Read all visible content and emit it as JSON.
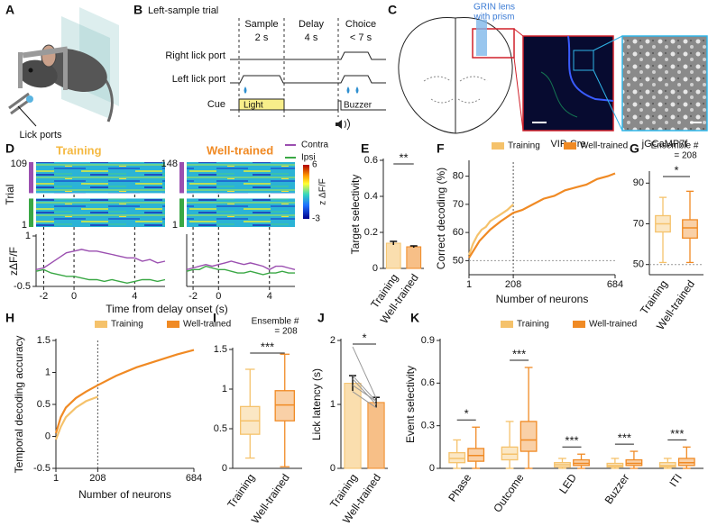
{
  "figure": {
    "panel_labels": [
      "A",
      "B",
      "C",
      "D",
      "E",
      "F",
      "G",
      "H",
      "I",
      "J",
      "K"
    ]
  },
  "diagram_a": {
    "label": "Lick ports"
  },
  "diagram_b": {
    "title": "Left-sample trial",
    "epochs": [
      {
        "name": "Sample",
        "duration": "2 s"
      },
      {
        "name": "Delay",
        "duration": "4 s"
      },
      {
        "name": "Choice",
        "duration": "< 7 s"
      }
    ],
    "rows": [
      "Right lick port",
      "Left lick port",
      "Cue"
    ],
    "cues": [
      "Light",
      "Buzzer"
    ]
  },
  "diagram_c": {
    "lens": [
      "GRIN lens",
      "with prism"
    ],
    "captions": [
      "VIP-Cre",
      "jGCaMP7f"
    ]
  },
  "chart_data": [
    {
      "type": "line",
      "title": "Training",
      "title_color": "#f5b942",
      "xlabel": "Time from delay onset (s)",
      "ylabel": "zΔF/F",
      "heatmap": {
        "ylabel": "Trial",
        "yticks": [
          1,
          109
        ]
      },
      "x": [
        -2.5,
        -2,
        -1.5,
        -1,
        -0.5,
        0,
        0.5,
        1,
        1.5,
        2,
        2.5,
        3,
        3.5,
        4,
        4.5,
        5,
        5.5,
        6
      ],
      "series": [
        {
          "name": "Contra",
          "color": "#9b4fb0",
          "values": [
            0.0,
            0.05,
            0.2,
            0.35,
            0.5,
            0.55,
            0.6,
            0.55,
            0.55,
            0.5,
            0.45,
            0.4,
            0.35,
            0.35,
            0.25,
            0.3,
            0.2,
            0.25
          ]
        },
        {
          "name": "Ipsi",
          "color": "#3aa845",
          "values": [
            -0.05,
            0.0,
            -0.1,
            -0.15,
            -0.2,
            -0.2,
            -0.25,
            -0.3,
            -0.3,
            -0.35,
            -0.3,
            -0.35,
            -0.4,
            -0.35,
            -0.3,
            -0.3,
            -0.35,
            -0.3
          ]
        }
      ],
      "xlim": [
        -2.5,
        6
      ],
      "xticks": [
        -2,
        0,
        4
      ],
      "ylim": [
        -0.5,
        1
      ],
      "yticks": [
        -0.5,
        1
      ],
      "legend": "top-right"
    },
    {
      "type": "line",
      "title": "Well-trained",
      "title_color": "#f08a24",
      "heatmap": {
        "yticks": [
          1,
          148
        ]
      },
      "colorbar": {
        "label": "z ΔF/F",
        "lim": [
          -3,
          6
        ],
        "ticks": [
          6,
          -3
        ]
      },
      "x": [
        -2.5,
        -2,
        -1.5,
        -1,
        -0.5,
        0,
        0.5,
        1,
        1.5,
        2,
        2.5,
        3,
        3.5,
        4,
        4.5,
        5,
        5.5,
        6
      ],
      "series": [
        {
          "color": "#9b4fb0",
          "values": [
            0.0,
            0.05,
            0.1,
            0.15,
            0.1,
            0.15,
            0.2,
            0.25,
            0.2,
            0.15,
            0.2,
            0.15,
            0.1,
            0.0,
            0.1,
            0.1,
            0.05,
            0.0
          ]
        },
        {
          "color": "#3aa845",
          "values": [
            -0.05,
            0.0,
            0.0,
            0.1,
            0.05,
            0.0,
            0.0,
            -0.05,
            -0.1,
            -0.1,
            -0.05,
            -0.1,
            -0.15,
            -0.1,
            -0.1,
            -0.05,
            -0.1,
            -0.1
          ]
        }
      ],
      "xlim": [
        -2.5,
        6
      ],
      "xticks": [
        -2,
        0,
        4
      ],
      "ylim": [
        -0.5,
        1
      ]
    },
    {
      "type": "bar",
      "ylabel": "Target selectivity",
      "categories": [
        "Training",
        "Well-trained"
      ],
      "values": [
        0.14,
        0.12
      ],
      "errors": [
        0.01,
        0.005
      ],
      "colors": [
        "#f5c26b",
        "#f08a24"
      ],
      "ylim": [
        0,
        0.6
      ],
      "yticks": [
        0,
        0.2,
        0.4,
        0.6
      ],
      "significance": "**"
    },
    {
      "type": "line",
      "xlabel": "Number of neurons",
      "ylabel": "Correct decoding (%)",
      "series": [
        {
          "name": "Training",
          "color": "#f5c26b",
          "x": [
            1,
            20,
            40,
            60,
            80,
            100,
            120,
            140,
            160,
            180,
            208
          ],
          "values": [
            52,
            56,
            59,
            61,
            62,
            64,
            65,
            66,
            67,
            68,
            70
          ]
        },
        {
          "name": "Well-trained",
          "color": "#f08a24",
          "x": [
            1,
            50,
            100,
            150,
            208,
            250,
            300,
            350,
            400,
            450,
            500,
            550,
            600,
            650,
            684
          ],
          "values": [
            51,
            57,
            61,
            64,
            67,
            68,
            70,
            72,
            73,
            75,
            76,
            77,
            79,
            80,
            81
          ]
        }
      ],
      "xlim": [
        1,
        684
      ],
      "xticks": [
        1,
        208,
        684
      ],
      "ylim": [
        45,
        85
      ],
      "yticks": [
        50,
        60,
        70,
        80
      ],
      "reference_y": 50,
      "reference_x": 208,
      "legend": "top"
    },
    {
      "type": "box",
      "annotation": [
        "Ensemble #",
        "= 208"
      ],
      "categories": [
        "Training",
        "Well-trained"
      ],
      "values": [
        [
          51,
          66,
          70,
          74,
          83
        ],
        [
          51,
          63,
          68,
          72,
          86
        ]
      ],
      "colors": [
        "#f5c26b",
        "#f08a24"
      ],
      "ylim": [
        45,
        95
      ],
      "yticks": [
        50,
        70,
        90
      ],
      "reference_y": 50,
      "significance": "*"
    },
    {
      "type": "line",
      "xlabel": "Number of neurons",
      "ylabel": "Temporal decoding accuracy",
      "series": [
        {
          "name": "Training",
          "color": "#f5c26b",
          "x": [
            1,
            25,
            50,
            100,
            150,
            208
          ],
          "values": [
            -0.05,
            0.15,
            0.3,
            0.45,
            0.55,
            0.62
          ]
        },
        {
          "name": "Well-trained",
          "color": "#f08a24",
          "x": [
            1,
            25,
            50,
            100,
            150,
            208,
            300,
            400,
            500,
            600,
            684
          ],
          "values": [
            0.05,
            0.3,
            0.45,
            0.6,
            0.7,
            0.8,
            0.95,
            1.08,
            1.18,
            1.28,
            1.35
          ]
        }
      ],
      "xlim": [
        1,
        684
      ],
      "xticks": [
        1,
        208,
        684
      ],
      "ylim": [
        -0.5,
        1.5
      ],
      "yticks": [
        -0.5,
        0,
        0.5,
        1,
        1.5
      ],
      "reference_x": 208,
      "legend": "top"
    },
    {
      "type": "box",
      "annotation": [
        "Ensemble #",
        "= 208"
      ],
      "categories": [
        "Training",
        "Well-trained"
      ],
      "values": [
        [
          0.13,
          0.43,
          0.6,
          0.78,
          1.25
        ],
        [
          0.02,
          0.6,
          0.8,
          0.98,
          1.44
        ]
      ],
      "colors": [
        "#f5c26b",
        "#f08a24"
      ],
      "ylim": [
        0,
        1.5
      ],
      "yticks": [
        0,
        0.5,
        1,
        1.5
      ],
      "significance": "***"
    },
    {
      "type": "bar",
      "ylabel": "Lick latency (s)",
      "categories": [
        "Training",
        "Well-trained"
      ],
      "values": [
        1.33,
        1.03
      ],
      "errors": [
        0.12,
        0.08
      ],
      "colors": [
        "#f5c26b",
        "#f08a24"
      ],
      "individual": [
        [
          1.9,
          1.1
        ],
        [
          1.45,
          1.05
        ],
        [
          1.4,
          1.0
        ],
        [
          1.3,
          1.05
        ],
        [
          1.2,
          0.95
        ]
      ],
      "ylim": [
        0,
        2
      ],
      "yticks": [
        0,
        1,
        2
      ],
      "significance": "*"
    },
    {
      "type": "box",
      "ylabel": "Event selectivity",
      "categories": [
        "Phase",
        "Outcome",
        "LED",
        "Buzzer",
        "ITI"
      ],
      "series": [
        {
          "name": "Training",
          "color": "#f5c26b",
          "values": [
            [
              0,
              0.04,
              0.07,
              0.11,
              0.2
            ],
            [
              0,
              0.06,
              0.1,
              0.15,
              0.33
            ],
            [
              0,
              0.01,
              0.025,
              0.04,
              0.07
            ],
            [
              0,
              0.01,
              0.02,
              0.035,
              0.07
            ],
            [
              0,
              0.01,
              0.02,
              0.04,
              0.07
            ]
          ]
        },
        {
          "name": "Well-trained",
          "color": "#f08a24",
          "values": [
            [
              0,
              0.05,
              0.09,
              0.14,
              0.29
            ],
            [
              0,
              0.12,
              0.2,
              0.33,
              0.71
            ],
            [
              0,
              0.02,
              0.035,
              0.06,
              0.1
            ],
            [
              0,
              0.02,
              0.035,
              0.06,
              0.12
            ],
            [
              0,
              0.02,
              0.04,
              0.07,
              0.15
            ]
          ]
        }
      ],
      "ylim": [
        0,
        0.9
      ],
      "yticks": [
        0,
        0.3,
        0.6,
        0.9
      ],
      "significance": [
        "*",
        "***",
        "***",
        "***",
        "***"
      ],
      "legend": "top"
    }
  ]
}
